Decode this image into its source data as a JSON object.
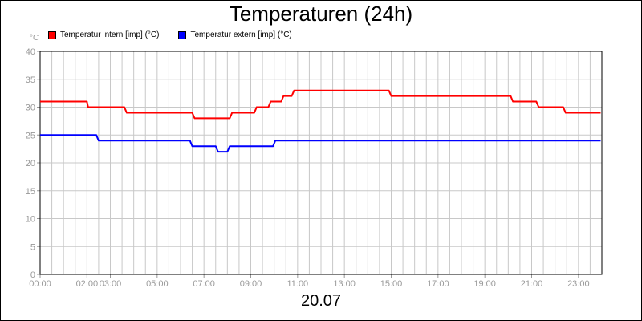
{
  "chart_data": {
    "type": "line",
    "title": "Temperaturen (24h)",
    "xlabel": "20.07",
    "ylabel": "°C",
    "ylim": [
      0,
      40
    ],
    "yticks": [
      0,
      5,
      10,
      15,
      20,
      25,
      30,
      35,
      40
    ],
    "xlim": [
      0,
      24
    ],
    "xticks": [
      {
        "h": 0,
        "label": "00:00"
      },
      {
        "h": 2,
        "label": "02:00"
      },
      {
        "h": 3,
        "label": "03:00"
      },
      {
        "h": 5,
        "label": "05:00"
      },
      {
        "h": 7,
        "label": "07:00"
      },
      {
        "h": 9,
        "label": "09:00"
      },
      {
        "h": 11,
        "label": "11:00"
      },
      {
        "h": 13,
        "label": "13:00"
      },
      {
        "h": 15,
        "label": "15:00"
      },
      {
        "h": 17,
        "label": "17:00"
      },
      {
        "h": 19,
        "label": "19:00"
      },
      {
        "h": 21,
        "label": "21:00"
      },
      {
        "h": 23,
        "label": "23:00"
      }
    ],
    "grid": true,
    "legend_position": "top-left",
    "series": [
      {
        "name": "Temperatur intern [imp] (°C)",
        "color": "#ff0000",
        "points": [
          [
            0,
            31
          ],
          [
            2.0,
            31
          ],
          [
            2.05,
            30
          ],
          [
            3.6,
            30
          ],
          [
            3.7,
            29
          ],
          [
            6.5,
            29
          ],
          [
            6.6,
            28
          ],
          [
            8.1,
            28
          ],
          [
            8.2,
            29
          ],
          [
            9.15,
            29
          ],
          [
            9.25,
            30
          ],
          [
            9.75,
            30
          ],
          [
            9.85,
            31
          ],
          [
            10.3,
            31
          ],
          [
            10.4,
            32
          ],
          [
            10.75,
            32
          ],
          [
            10.85,
            33
          ],
          [
            14.9,
            33
          ],
          [
            15.0,
            32
          ],
          [
            20.1,
            32
          ],
          [
            20.2,
            31
          ],
          [
            21.2,
            31
          ],
          [
            21.3,
            30
          ],
          [
            22.35,
            30
          ],
          [
            22.45,
            29
          ],
          [
            23.95,
            29
          ]
        ]
      },
      {
        "name": "Temperatur extern [imp] (°C)",
        "color": "#0000ff",
        "points": [
          [
            0,
            25
          ],
          [
            2.4,
            25
          ],
          [
            2.5,
            24
          ],
          [
            6.4,
            24
          ],
          [
            6.5,
            23
          ],
          [
            7.5,
            23
          ],
          [
            7.6,
            22
          ],
          [
            8.0,
            22
          ],
          [
            8.1,
            23
          ],
          [
            9.95,
            23
          ],
          [
            10.05,
            24
          ],
          [
            23.95,
            24
          ]
        ]
      }
    ]
  }
}
